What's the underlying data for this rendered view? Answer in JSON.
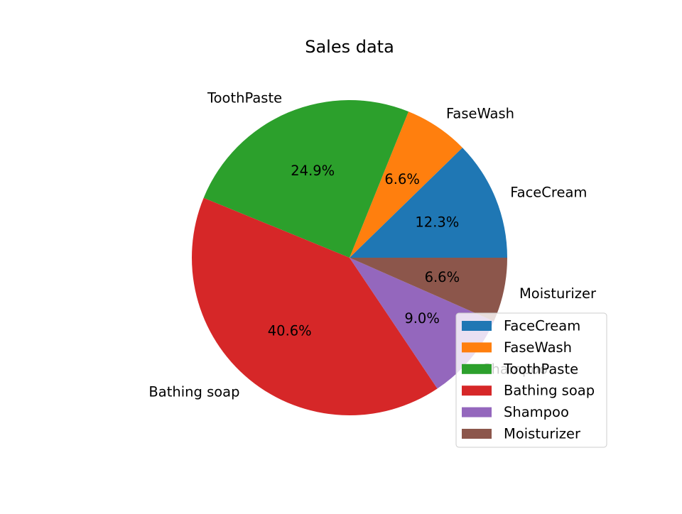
{
  "chart_data": {
    "type": "pie",
    "title": "Sales data",
    "categories": [
      "FaceCream",
      "FaseWash",
      "ToothPaste",
      "Bathing soap",
      "Shampoo",
      "Moisturizer"
    ],
    "values": [
      12.3,
      6.6,
      24.9,
      40.6,
      9.0,
      6.6
    ],
    "value_labels": [
      "12.3%",
      "6.6%",
      "24.9%",
      "40.6%",
      "9.0%",
      "6.6%"
    ],
    "colors": [
      "#1f77b4",
      "#ff7f0e",
      "#2ca02c",
      "#d62728",
      "#9467bd",
      "#8c564b"
    ],
    "start_angle": 0,
    "direction": "counterclockwise",
    "legend": {
      "placement": "lower-right",
      "entries": [
        "FaceCream",
        "FaseWash",
        "ToothPaste",
        "Bathing soap",
        "Shampoo",
        "Moisturizer"
      ]
    }
  }
}
